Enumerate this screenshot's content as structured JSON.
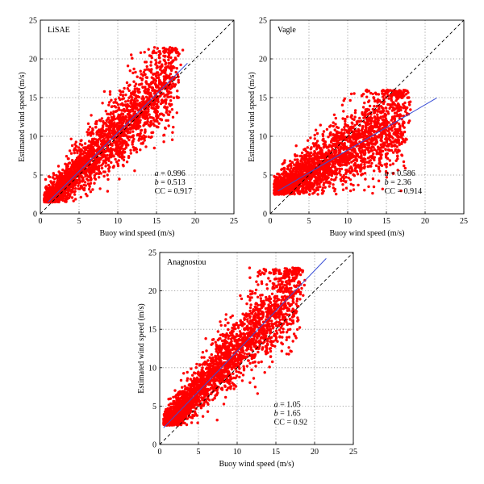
{
  "chart_data": [
    {
      "type": "scatter",
      "title": "LiSAE",
      "xlabel": "Buoy wind speed (m/s)",
      "ylabel": "Estimated wind speed (m/s)",
      "xlim": [
        0,
        25
      ],
      "ylim": [
        0,
        25
      ],
      "xticks": [
        0,
        5,
        10,
        15,
        20,
        25
      ],
      "yticks": [
        0,
        5,
        10,
        15,
        20,
        25
      ],
      "grid": true,
      "point_color": "#ff0000",
      "fit_color": "#3a4fd6",
      "fit_x_range": [
        1,
        19
      ],
      "identity_line": true,
      "cloud": {
        "x_min": 0.5,
        "x_max": 19,
        "y_floor": 1.5,
        "y_peak": 21.5
      },
      "stats": {
        "a_label": "a",
        "a": "= 0.996",
        "b_label": "b",
        "b": "= 0.513",
        "cc_label": "CC",
        "cc": "= 0.917"
      },
      "fit": {
        "slope": 0.996,
        "intercept": 0.513
      }
    },
    {
      "type": "scatter",
      "title": "Vagle",
      "xlabel": "Buoy wind speed (m/s)",
      "ylabel": "Estimated wind speed (m/s)",
      "xlim": [
        0,
        25
      ],
      "ylim": [
        0,
        25
      ],
      "xticks": [
        0,
        5,
        10,
        15,
        20,
        25
      ],
      "yticks": [
        0,
        5,
        10,
        15,
        20,
        25
      ],
      "grid": true,
      "point_color": "#ff0000",
      "fit_color": "#3a4fd6",
      "fit_x_range": [
        1,
        21.5
      ],
      "identity_line": true,
      "cloud": {
        "x_min": 0.5,
        "x_max": 19,
        "y_floor": 2.5,
        "y_peak": 16
      },
      "stats": {
        "a_label": "a",
        "a": "= 0.586",
        "b_label": "b",
        "b": "= 2.36",
        "cc_label": "CC",
        "cc": "= 0.914"
      },
      "fit": {
        "slope": 0.586,
        "intercept": 2.36
      }
    },
    {
      "type": "scatter",
      "title": "Anagnostou",
      "xlabel": "Buoy wind speed (m/s)",
      "ylabel": "Estimated wind speed (m/s)",
      "xlim": [
        0,
        25
      ],
      "ylim": [
        0,
        25
      ],
      "xticks": [
        0,
        5,
        10,
        15,
        20,
        25
      ],
      "yticks": [
        0,
        5,
        10,
        15,
        20,
        25
      ],
      "grid": true,
      "point_color": "#ff0000",
      "fit_color": "#3a4fd6",
      "fit_x_range": [
        0.5,
        21.5
      ],
      "identity_line": true,
      "cloud": {
        "x_min": 0.5,
        "x_max": 19.5,
        "y_floor": 2.5,
        "y_peak": 23
      },
      "stats": {
        "a_label": "a",
        "a": "= 1.05",
        "b_label": "b",
        "b": "= 1.65",
        "cc_label": "CC",
        "cc": "= 0.92"
      },
      "fit": {
        "slope": 1.05,
        "intercept": 1.65
      }
    }
  ]
}
